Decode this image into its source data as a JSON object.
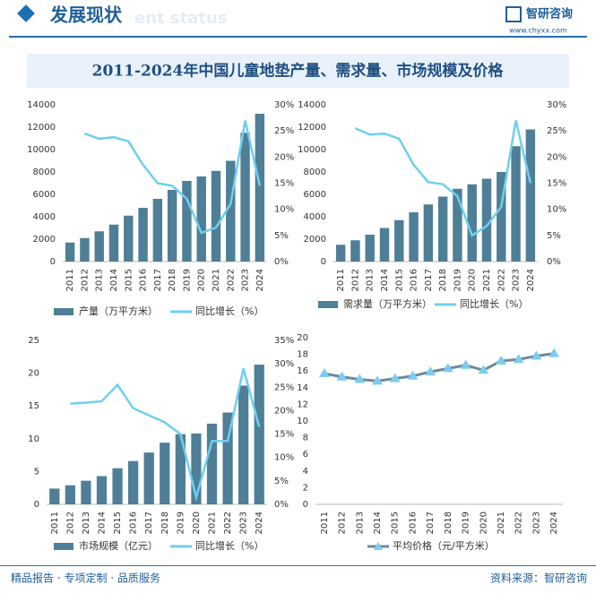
{
  "header": {
    "title": "发展现状",
    "subtitle": "ent status",
    "logo": "智研咨询",
    "url": "www.chyxx.com"
  },
  "title": "2011-2024年中国儿童地垫产量、需求量、市场规模及价格",
  "footer": {
    "left": "精品报告 · 专项定制 · 品质服务",
    "source": "资料来源：智研咨询"
  },
  "chart_data": [
    {
      "type": "bar",
      "categories": [
        "2011",
        "2012",
        "2013",
        "2014",
        "2015",
        "2016",
        "2017",
        "2018",
        "2019",
        "2020",
        "2021",
        "2022",
        "2023",
        "2024"
      ],
      "series": [
        {
          "name": "产量（万平方米）",
          "type": "bar",
          "color": "#4f7f96",
          "values": [
            1700,
            2100,
            2700,
            3300,
            4100,
            4800,
            5600,
            6400,
            7200,
            7600,
            8100,
            9000,
            11500,
            13200
          ]
        },
        {
          "name": "同比增长（%）",
          "type": "line",
          "axis": "y2",
          "color": "#6ecff0",
          "values": [
            null,
            24.5,
            23.5,
            23.8,
            23,
            18.5,
            15,
            14.5,
            12,
            5.5,
            6.5,
            11,
            27,
            14.5
          ]
        }
      ],
      "ylim": [
        0,
        14000
      ],
      "yticks": [
        0,
        2000,
        4000,
        6000,
        8000,
        10000,
        12000,
        14000
      ],
      "y2lim": [
        0,
        30
      ],
      "y2ticks": [
        {
          "value": 0,
          "label": "0%"
        },
        {
          "value": 5,
          "label": "5%"
        },
        {
          "value": 10,
          "label": "10%"
        },
        {
          "value": 15,
          "label": "15%"
        },
        {
          "value": 20,
          "label": "20%"
        },
        {
          "value": 25,
          "label": "25%"
        },
        {
          "value": 30,
          "label": "30%"
        }
      ]
    },
    {
      "type": "bar",
      "categories": [
        "2011",
        "2012",
        "2013",
        "2014",
        "2015",
        "2016",
        "2017",
        "2018",
        "2019",
        "2020",
        "2021",
        "2022",
        "2023",
        "2024"
      ],
      "series": [
        {
          "name": "需求量（万平方米）",
          "type": "bar",
          "color": "#4f7f96",
          "values": [
            1500,
            1900,
            2400,
            3000,
            3700,
            4400,
            5100,
            5800,
            6500,
            6900,
            7400,
            8000,
            10300,
            11800
          ]
        },
        {
          "name": "同比增长（%）",
          "type": "line",
          "axis": "y2",
          "color": "#6ecff0",
          "values": [
            null,
            25.5,
            24.3,
            24.5,
            23.5,
            18.5,
            15.2,
            14.8,
            12.5,
            5,
            6.8,
            10.5,
            27,
            15
          ]
        }
      ],
      "ylim": [
        0,
        14000
      ],
      "yticks": [
        0,
        2000,
        4000,
        6000,
        8000,
        10000,
        12000,
        14000
      ],
      "y2lim": [
        0,
        30
      ],
      "y2ticks": [
        {
          "value": 0,
          "label": "0%"
        },
        {
          "value": 5,
          "label": "5%"
        },
        {
          "value": 10,
          "label": "10%"
        },
        {
          "value": 15,
          "label": "15%"
        },
        {
          "value": 20,
          "label": "20%"
        },
        {
          "value": 25,
          "label": "25%"
        },
        {
          "value": 30,
          "label": "30%"
        }
      ]
    },
    {
      "type": "bar",
      "categories": [
        "2011",
        "2012",
        "2013",
        "2014",
        "2015",
        "2016",
        "2017",
        "2018",
        "2019",
        "2020",
        "2021",
        "2022",
        "2023",
        "2024"
      ],
      "series": [
        {
          "name": "市场规模（亿元）",
          "type": "bar",
          "color": "#4f7f96",
          "values": [
            2.4,
            2.9,
            3.6,
            4.3,
            5.5,
            6.6,
            7.9,
            9.4,
            10.7,
            10.8,
            12.3,
            14.0,
            18.1,
            21.3
          ]
        },
        {
          "name": "同比增长（%）",
          "type": "line",
          "axis": "y2",
          "color": "#6ecff0",
          "values": [
            null,
            21.5,
            21.7,
            22,
            25.5,
            20.5,
            19,
            17.5,
            15,
            1.5,
            13.5,
            13.5,
            29,
            16.5
          ]
        }
      ],
      "ylim": [
        0,
        25
      ],
      "yticks": [
        0,
        5,
        10,
        15,
        20,
        25
      ],
      "y2lim": [
        0,
        35
      ],
      "y2ticks": [
        {
          "value": 0,
          "label": "0%"
        },
        {
          "value": 5,
          "label": "5%"
        },
        {
          "value": 10,
          "label": "10%"
        },
        {
          "value": 15,
          "label": "15%"
        },
        {
          "value": 20,
          "label": "20%"
        },
        {
          "value": 25,
          "label": "25%"
        },
        {
          "value": 30,
          "label": "30%"
        },
        {
          "value": 35,
          "label": "35%"
        }
      ]
    },
    {
      "type": "line",
      "categories": [
        "2011",
        "2012",
        "2013",
        "2014",
        "2015",
        "2016",
        "2017",
        "2018",
        "2019",
        "2020",
        "2021",
        "2022",
        "2023",
        "2024"
      ],
      "series": [
        {
          "name": "平均价格（元/平方米）",
          "type": "line",
          "color": "#6f8a99",
          "marker_color": "#7ccbf0",
          "values": [
            15.7,
            15.3,
            15.0,
            14.8,
            15.1,
            15.4,
            15.9,
            16.3,
            16.7,
            16.1,
            17.2,
            17.4,
            17.8,
            18.1
          ]
        }
      ],
      "ylim": [
        0,
        20
      ],
      "yticks": [
        0,
        2,
        4,
        6,
        8,
        10,
        12,
        14,
        16,
        18,
        20
      ]
    }
  ]
}
